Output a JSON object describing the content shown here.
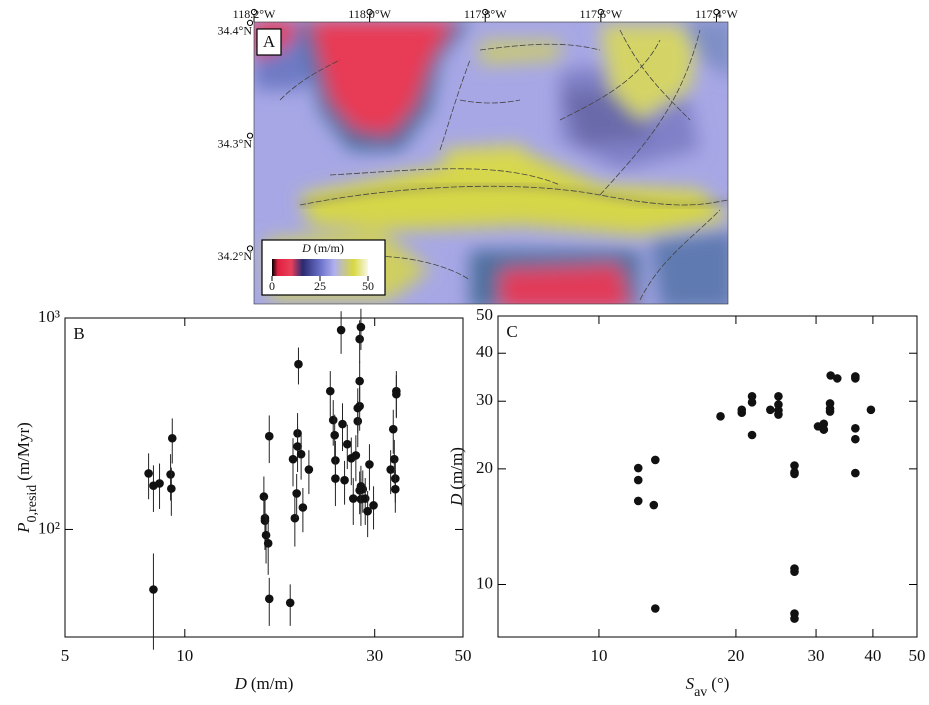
{
  "chart_data": [
    {
      "type": "map",
      "panel": "A",
      "xlim": [
        -118.2,
        -117.38
      ],
      "xticks": [
        {
          "value": -118.2,
          "label": "118.2°W"
        },
        {
          "value": -118.0,
          "label": "118.0°W"
        },
        {
          "value": -117.8,
          "label": "117.8°W"
        },
        {
          "value": -117.6,
          "label": "117.6°W"
        },
        {
          "value": -117.4,
          "label": "117.4°W"
        }
      ],
      "ylim": [
        34.157,
        34.407
      ],
      "yticks": [
        {
          "value": 34.4,
          "label": "34.4°N"
        },
        {
          "value": 34.3,
          "label": "34.3°N"
        },
        {
          "value": 34.2,
          "label": "34.2°N"
        }
      ],
      "colorbar": {
        "label": {
          "symbol": "D",
          "unit": "(m/m)"
        },
        "lim": [
          0,
          50
        ],
        "ticks": [
          0,
          25,
          50
        ]
      }
    },
    {
      "type": "scatter",
      "panel": "B",
      "xscale": "log",
      "yscale": "log",
      "xlim": [
        5,
        50
      ],
      "xticks": [
        5,
        10,
        30,
        50
      ],
      "ylim": [
        31,
        1000
      ],
      "yticks": [
        {
          "value": 100,
          "label": "10²"
        },
        {
          "value": 1000,
          "label": "10³"
        }
      ],
      "xlabel": {
        "symbol": "D",
        "unit": "(m/m)"
      },
      "ylabel": {
        "symbol": "P",
        "subscript": "0,resid",
        "unit": "(m/Myr)"
      },
      "color": "#111111",
      "x": [
        8.11,
        8.34,
        8.64,
        9.21,
        9.25,
        9.3,
        8.34,
        15.8,
        15.9,
        15.9,
        16.0,
        16.2,
        16.3,
        16.3,
        18.4,
        18.7,
        18.9,
        19.1,
        19.2,
        19.2,
        19.3,
        19.6,
        19.8,
        20.5,
        23.2,
        23.6,
        23.8,
        23.9,
        23.9,
        24.7,
        24.9,
        25.2,
        25.6,
        26.2,
        26.5,
        26.9,
        27.2,
        27.2,
        27.5,
        27.5,
        27.5,
        27.7,
        27.5,
        27.7,
        27.7,
        28.0,
        28.4,
        28.8,
        29.1,
        29.8,
        32.9,
        33.4,
        33.6,
        33.8,
        33.8,
        34.0,
        34.0
      ],
      "values": [
        184,
        161,
        165,
        182,
        156,
        270,
        52,
        143,
        113,
        110,
        94,
        86,
        276,
        47,
        45,
        215,
        113,
        148,
        285,
        247,
        605,
        227,
        127,
        192,
        451,
        329,
        279,
        212,
        174,
        877,
        315,
        171,
        253,
        217,
        140,
        224,
        325,
        375,
        383,
        503,
        795,
        906,
        153,
        139,
        160,
        155,
        140,
        122,
        203,
        130,
        192,
        298,
        215,
        174,
        155,
        451,
        436
      ],
      "errors": [
        45,
        40,
        40,
        45,
        40,
        65,
        25,
        35,
        30,
        30,
        25,
        25,
        70,
        12,
        10,
        55,
        30,
        35,
        70,
        60,
        120,
        55,
        30,
        45,
        110,
        80,
        70,
        50,
        45,
        200,
        80,
        40,
        60,
        55,
        35,
        55,
        80,
        90,
        90,
        120,
        180,
        200,
        35,
        35,
        40,
        35,
        35,
        30,
        50,
        30,
        45,
        70,
        50,
        40,
        35,
        110,
        100
      ]
    },
    {
      "type": "scatter",
      "panel": "C",
      "xscale": "log",
      "yscale": "log",
      "xlim": [
        6,
        50
      ],
      "xticks": [
        10,
        20,
        30,
        40,
        50
      ],
      "ylim": [
        7.3,
        50
      ],
      "yticks": [
        10,
        20,
        30,
        40,
        50
      ],
      "xlabel": {
        "symbol": "S",
        "subscript": "av",
        "unit": "(°)"
      },
      "ylabel": {
        "symbol": "D",
        "unit": "(m/m)"
      },
      "color": "#111111",
      "x": [
        12.2,
        12.2,
        12.2,
        13.2,
        13.3,
        13.3,
        18.5,
        20.6,
        20.6,
        21.7,
        21.7,
        21.7,
        23.8,
        24.8,
        24.8,
        24.8,
        24.8,
        26.9,
        26.9,
        26.9,
        26.9,
        26.9,
        26.9,
        26.9,
        30.3,
        31.2,
        31.2,
        32.2,
        32.2,
        32.2,
        32.3,
        33.4,
        36.6,
        36.6,
        36.6,
        36.6,
        36.6,
        39.6
      ],
      "values": [
        20.1,
        18.7,
        16.5,
        16.1,
        21.1,
        8.66,
        27.4,
        28.0,
        28.5,
        29.8,
        30.9,
        24.5,
        28.5,
        30.9,
        29.4,
        28.4,
        27.7,
        20.4,
        19.6,
        19.4,
        11.0,
        10.8,
        8.4,
        8.15,
        25.8,
        26.2,
        25.3,
        28.7,
        28.2,
        29.6,
        35.0,
        34.4,
        34.8,
        34.4,
        25.5,
        23.9,
        19.5,
        28.5
      ]
    }
  ]
}
